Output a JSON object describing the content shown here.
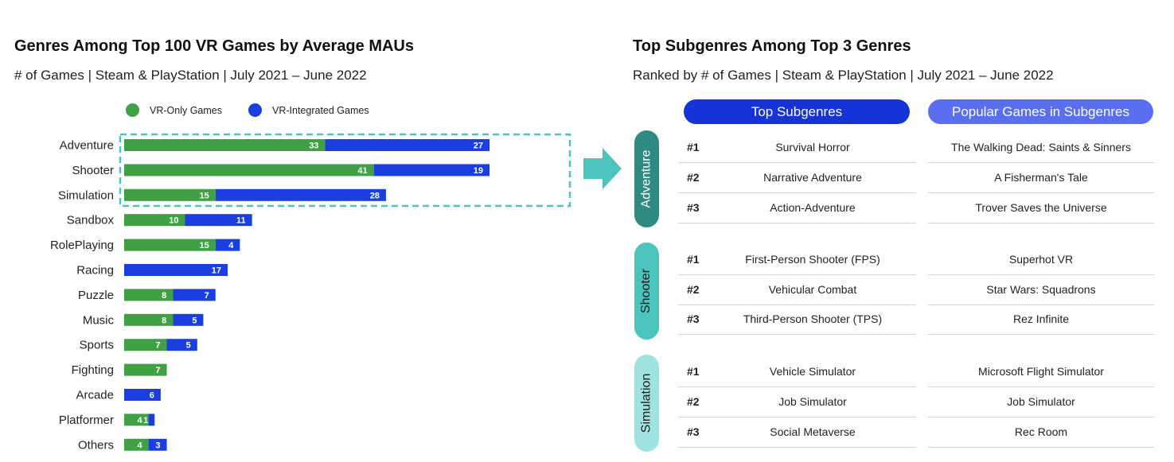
{
  "left_panel": {
    "title": "Genres Among Top 100 VR Games by Average MAUs",
    "subtitle": "# of Games | Steam & PlayStation | July 2021 – June 2022",
    "legend": [
      {
        "label": "VR-Only Games",
        "color": "#3fa144"
      },
      {
        "label": "VR-Integrated Games",
        "color": "#1a3ee0"
      }
    ]
  },
  "chart_data": {
    "type": "bar",
    "orientation": "horizontal",
    "stacked": true,
    "title": "Genres Among Top 100 VR Games by Average MAUs",
    "subtitle": "# of Games | Steam & PlayStation | July 2021 – June 2022",
    "categories": [
      "Adventure",
      "Shooter",
      "Simulation",
      "Sandbox",
      "RolePlaying",
      "Racing",
      "Puzzle",
      "Music",
      "Sports",
      "Fighting",
      "Arcade",
      "Platformer",
      "Others"
    ],
    "series": [
      {
        "name": "VR-Only Games",
        "color": "#3fa144",
        "values": [
          33,
          41,
          15,
          10,
          15,
          0,
          8,
          8,
          7,
          7,
          0,
          4,
          4
        ]
      },
      {
        "name": "VR-Integrated Games",
        "color": "#1a3ee0",
        "values": [
          27,
          19,
          28,
          11,
          4,
          17,
          7,
          5,
          5,
          0,
          6,
          1,
          3
        ]
      }
    ],
    "highlight": [
      "Adventure",
      "Shooter",
      "Simulation"
    ],
    "highlight_color": "#4cc4be",
    "legend_position": "top",
    "grid": false
  },
  "right_panel": {
    "title": "Top Subgenres Among Top 3 Genres",
    "subtitle": "Ranked by # of Games | Steam & PlayStation | July 2021 – June 2022",
    "headers": {
      "subgenres": "Top Subgenres",
      "games": "Popular Games in Subgenres"
    },
    "header_colors": {
      "subgenres": "#1533d6",
      "games": "#5a6ef0"
    },
    "genres": [
      {
        "name": "Adventure",
        "color": "#2e8b84",
        "text_color": "#ffffff",
        "rows": [
          {
            "rank": "#1",
            "subgenre": "Survival Horror",
            "game": "The Walking Dead: Saints & Sinners"
          },
          {
            "rank": "#2",
            "subgenre": "Narrative Adventure",
            "game": "A Fisherman's Tale"
          },
          {
            "rank": "#3",
            "subgenre": "Action-Adventure",
            "game": "Trover Saves the Universe"
          }
        ]
      },
      {
        "name": "Shooter",
        "color": "#4cc4be",
        "text_color": "#1a1a1a",
        "rows": [
          {
            "rank": "#1",
            "subgenre": "First-Person Shooter (FPS)",
            "game": "Superhot VR"
          },
          {
            "rank": "#2",
            "subgenre": "Vehicular Combat",
            "game": "Star Wars: Squadrons"
          },
          {
            "rank": "#3",
            "subgenre": "Third-Person Shooter (TPS)",
            "game": "Rez Infinite"
          }
        ]
      },
      {
        "name": "Simulation",
        "color": "#9ee3df",
        "text_color": "#1a1a1a",
        "rows": [
          {
            "rank": "#1",
            "subgenre": "Vehicle Simulator",
            "game": "Microsoft Flight Simulator"
          },
          {
            "rank": "#2",
            "subgenre": "Job Simulator",
            "game": "Job Simulator"
          },
          {
            "rank": "#3",
            "subgenre": "Social Metaverse",
            "game": "Rec Room"
          }
        ]
      }
    ]
  },
  "arrow": {
    "color": "#4cc4be",
    "icon": "right-arrow-icon"
  }
}
